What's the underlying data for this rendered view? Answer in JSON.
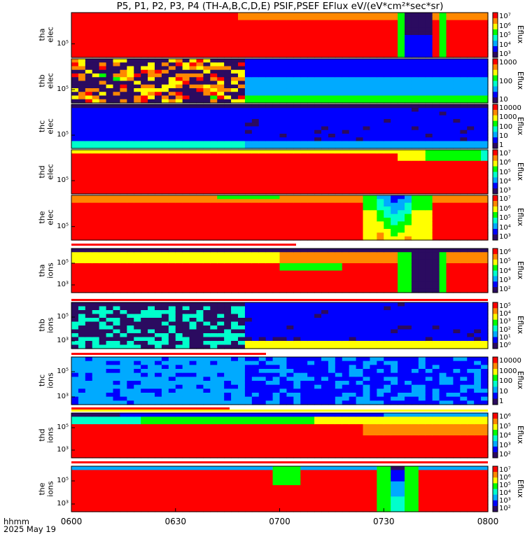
{
  "chart_data": {
    "type": "heatmap",
    "title": "P5, P1, P2, P3, P4 (TH-A,B,C,D,E) PSIF,PSEF EFlux eV/(eV*cm²*sec*sr)",
    "x_axis": {
      "ticks": [
        "0600",
        "0630",
        "0700",
        "0730",
        "0800"
      ],
      "range": [
        "06:00",
        "08:00"
      ],
      "label_lines": [
        "hhmm",
        "2025 May 19"
      ]
    },
    "colorbar_label": "Eflux",
    "panels": [
      {
        "label_lines": [
          "tha",
          "elec"
        ],
        "ytick": "10⁵",
        "colorbar_ticks": [
          "10⁷",
          "10⁶",
          "10⁵",
          "10⁴",
          "10³"
        ],
        "description_blocks": [
          "red high flux most of interval",
          "data gap columns near 07:34-07:45"
        ]
      },
      {
        "label_lines": [
          "thb",
          "elec"
        ],
        "ytick": "10⁵",
        "colorbar_ticks": [
          "1000",
          "100",
          "10"
        ],
        "status_bar": false
      },
      {
        "label_lines": [
          "thc",
          "elec"
        ],
        "ytick": "10⁵",
        "colorbar_ticks": [
          "10000",
          "1000",
          "100",
          "10",
          "1"
        ]
      },
      {
        "label_lines": [
          "thd",
          "elec"
        ],
        "ytick": "10⁵",
        "colorbar_ticks": [
          "10⁷",
          "10⁶",
          "10⁵",
          "10⁴",
          "10³"
        ]
      },
      {
        "label_lines": [
          "the",
          "elec"
        ],
        "ytick": "10⁵",
        "colorbar_ticks": [
          "10⁷",
          "10⁶",
          "10⁵",
          "10⁴",
          "10³"
        ]
      },
      {
        "label_lines": [
          "tha",
          "ions"
        ],
        "yticks": [
          "10³",
          "10⁵"
        ],
        "colorbar_ticks": [
          "10⁶",
          "10⁵",
          "10⁴",
          "10³",
          "10²"
        ]
      },
      {
        "label_lines": [
          "thb",
          "ions"
        ],
        "yticks": [
          "10³",
          "10⁵"
        ],
        "colorbar_ticks": [
          "10⁵",
          "10⁴",
          "10³",
          "10²",
          "10¹",
          "10⁰"
        ]
      },
      {
        "label_lines": [
          "thc",
          "ions"
        ],
        "yticks": [
          "10³",
          "10⁵"
        ],
        "colorbar_ticks": [
          "10000",
          "1000",
          "100",
          "10",
          "1"
        ]
      },
      {
        "label_lines": [
          "thd",
          "ions"
        ],
        "yticks": [
          "10³",
          "10⁵"
        ],
        "colorbar_ticks": [
          "10⁶",
          "10⁵",
          "10⁴",
          "10³",
          "10²"
        ]
      },
      {
        "label_lines": [
          "the",
          "ions"
        ],
        "yticks": [
          "10³",
          "10⁵"
        ],
        "colorbar_ticks": [
          "10⁷",
          "10⁶",
          "10⁵",
          "10⁴",
          "10³",
          "10²"
        ]
      }
    ],
    "colormap": [
      "#2b0b60",
      "#0000ff",
      "#00aaff",
      "#00ffcc",
      "#00ff00",
      "#ffff00",
      "#ff8800",
      "#ff0000"
    ]
  }
}
